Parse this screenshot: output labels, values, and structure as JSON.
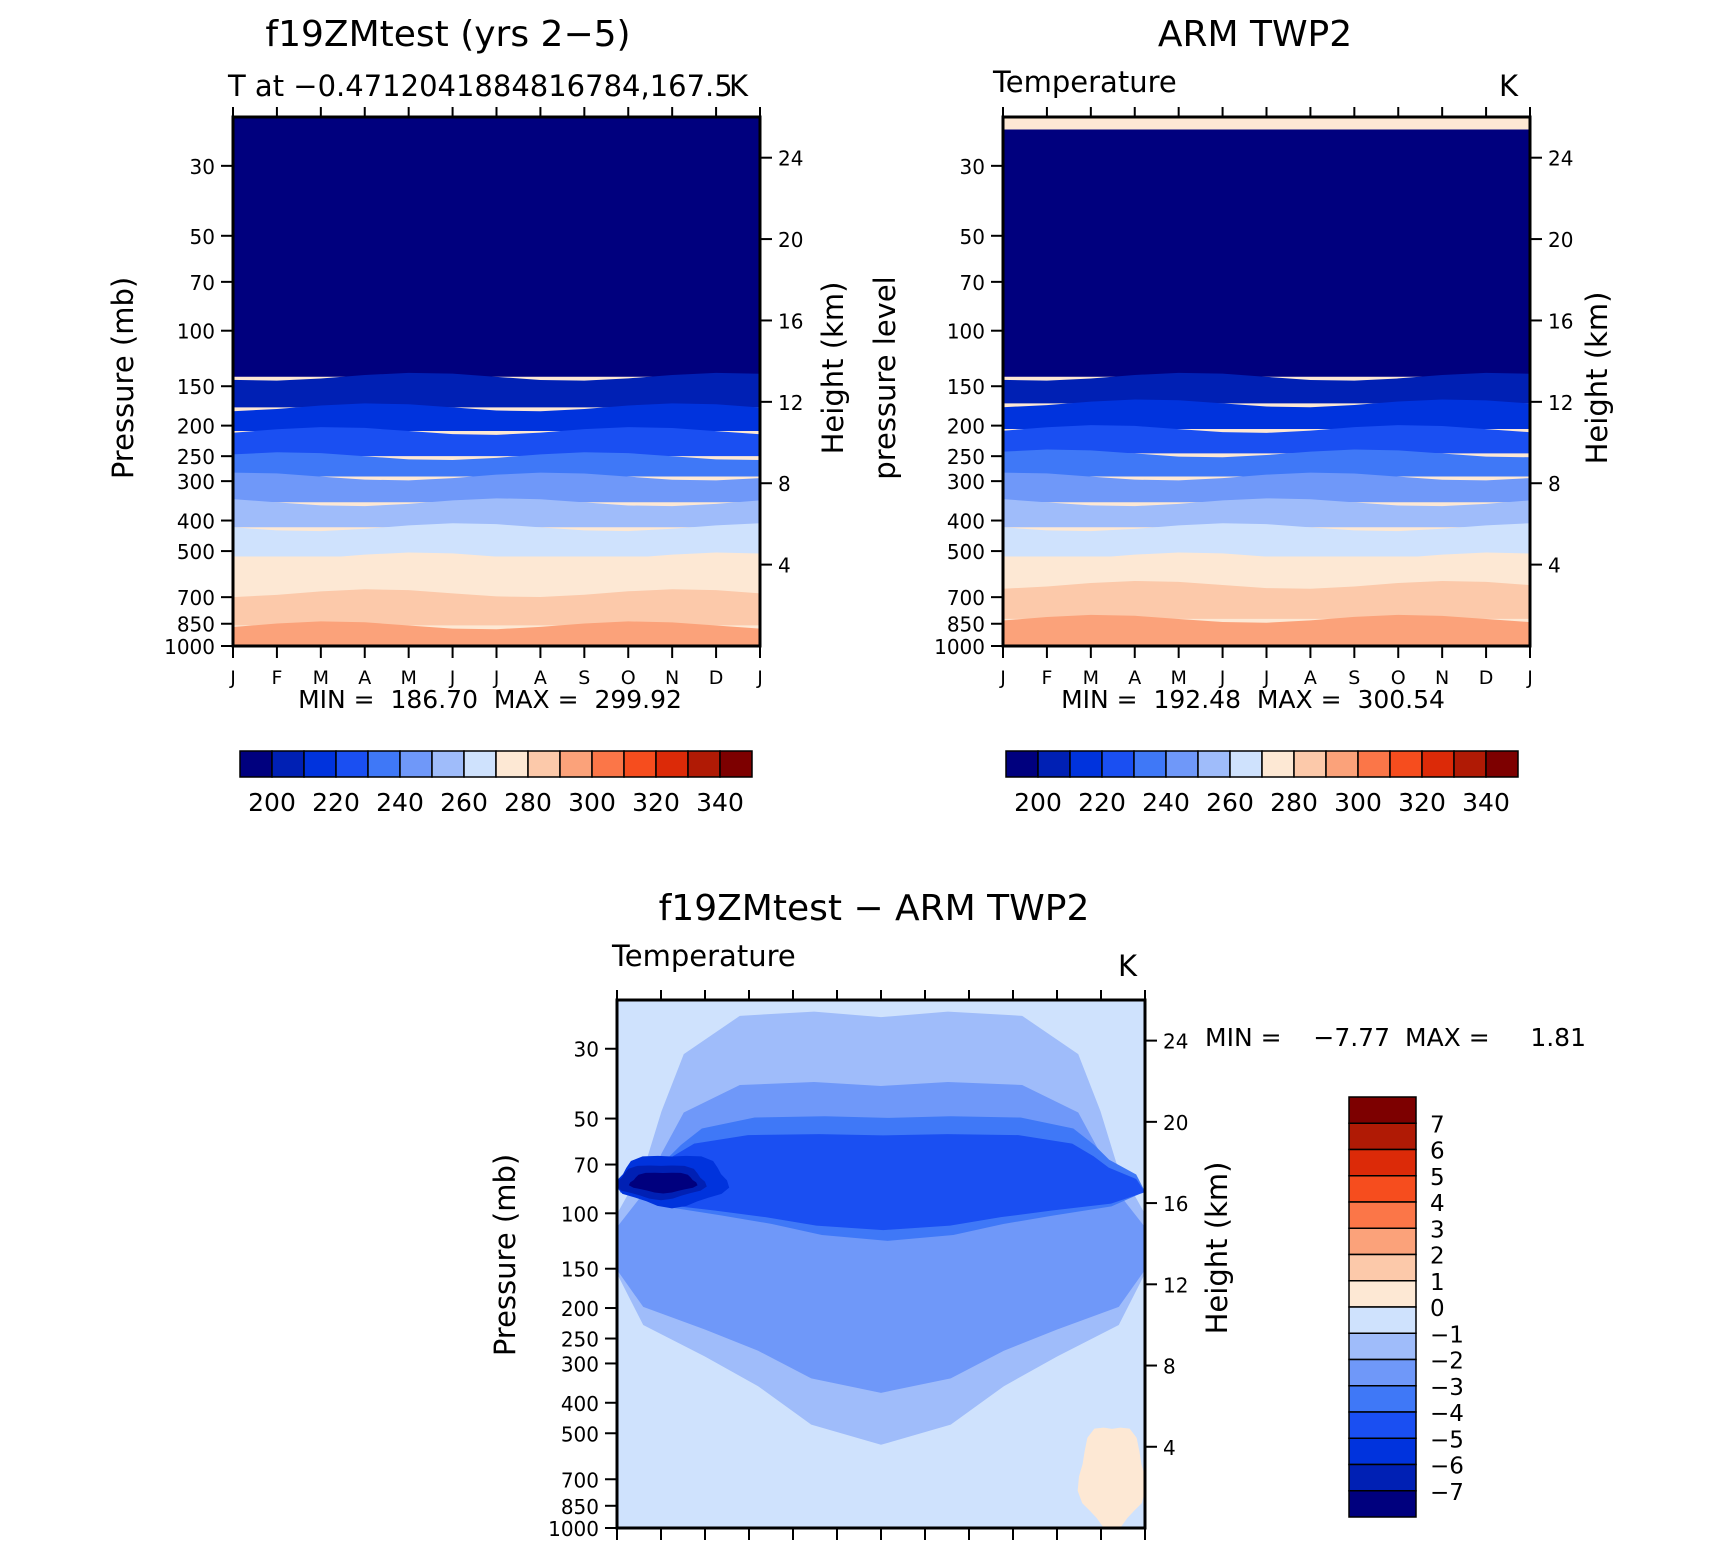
{
  "months": [
    "J",
    "F",
    "M",
    "A",
    "M",
    "J",
    "J",
    "A",
    "S",
    "O",
    "N",
    "D",
    "J"
  ],
  "pressure_ticks": [
    30,
    50,
    70,
    100,
    150,
    200,
    250,
    300,
    400,
    500,
    700,
    850,
    1000
  ],
  "height_ticks": [
    4,
    8,
    12,
    16,
    20,
    24
  ],
  "pressure_label": "Pressure (mb)",
  "pressure_label_alt": "pressure level",
  "height_label": "Height (km)",
  "abs_palette": [
    "#00007e",
    "#0020b4",
    "#0033dd",
    "#1a4ff2",
    "#3f78f7",
    "#6f98f9",
    "#9fbcfa",
    "#cfe2fd",
    "#fde8d4",
    "#fcc9aa",
    "#fba27a",
    "#fb7648",
    "#f64d1e",
    "#dc2a08",
    "#b01a05",
    "#7d0000"
  ],
  "abs_colorbar_labels": [
    "200",
    "220",
    "240",
    "260",
    "280",
    "300",
    "320",
    "340"
  ],
  "diff_palette": [
    "#00007e",
    "#0020b4",
    "#0033dd",
    "#1a4ff2",
    "#3f78f7",
    "#6f98f9",
    "#9fbcfa",
    "#cfe2fd",
    "#fde8d4",
    "#fcc9aa",
    "#fba27a",
    "#fb7648",
    "#f64d1e",
    "#dc2a08",
    "#b01a05",
    "#7d0000"
  ],
  "diff_colorbar_labels": [
    "7",
    "6",
    "5",
    "4",
    "3",
    "2",
    "1",
    "0",
    "−1",
    "−2",
    "−3",
    "−4",
    "−5",
    "−6",
    "−7"
  ],
  "chart_data": [
    {
      "type": "heatmap",
      "title": "f19ZMtest (yrs 2−5)",
      "left_label": "T at −0.4712041884816784,167.5",
      "right_label": "K",
      "ylabel": "Pressure (mb)",
      "y2label": "Height (km)",
      "x": [
        "J",
        "F",
        "M",
        "A",
        "M",
        "J",
        "J",
        "A",
        "S",
        "O",
        "N",
        "D",
        "J"
      ],
      "ylim": [
        1000,
        20
      ],
      "y2lim": [
        0,
        26
      ],
      "stats": "MIN =  186.70  MAX =  299.92",
      "min": 186.7,
      "max": 299.92,
      "bands": [
        {
          "level": "< 200",
          "top_pressure": 21,
          "bottom_pressure": 140,
          "color": "#00007e"
        },
        {
          "level": "200-210",
          "top_pressure": 140,
          "bottom_pressure": 175,
          "color": "#0020b4"
        },
        {
          "level": "210-220",
          "top_pressure": 175,
          "bottom_pressure": 208,
          "color": "#0033dd"
        },
        {
          "level": "220-230",
          "top_pressure": 208,
          "bottom_pressure": 250,
          "color": "#1a4ff2"
        },
        {
          "level": "230-240",
          "top_pressure": 250,
          "bottom_pressure": 290,
          "color": "#3f78f7"
        },
        {
          "level": "240-250",
          "top_pressure": 290,
          "bottom_pressure": 350,
          "color": "#6f98f9"
        },
        {
          "level": "250-260",
          "top_pressure": 350,
          "bottom_pressure": 420,
          "color": "#9fbcfa"
        },
        {
          "level": "260-270",
          "top_pressure": 420,
          "bottom_pressure": 520,
          "color": "#cfe2fd"
        },
        {
          "level": "270-280",
          "top_pressure": 520,
          "bottom_pressure": 680,
          "color": "#fde8d4"
        },
        {
          "level": "280-290",
          "top_pressure": 680,
          "bottom_pressure": 860,
          "color": "#fcc9aa"
        },
        {
          "level": "290-300",
          "top_pressure": 860,
          "bottom_pressure": 1000,
          "color": "#fba27a"
        }
      ]
    },
    {
      "type": "heatmap",
      "title": "ARM TWP2",
      "left_label": "Temperature",
      "right_label": "K",
      "ylabel": "pressure level",
      "y2label": "Height (km)",
      "x": [
        "J",
        "F",
        "M",
        "A",
        "M",
        "J",
        "J",
        "A",
        "S",
        "O",
        "N",
        "D",
        "J"
      ],
      "ylim": [
        1000,
        20
      ],
      "y2lim": [
        0,
        26
      ],
      "stats": "MIN =  192.48  MAX =  300.54",
      "min": 192.48,
      "max": 300.54,
      "bands": [
        {
          "level": "< 200",
          "top_pressure": 23,
          "bottom_pressure": 140,
          "color": "#00007e"
        },
        {
          "level": "200-210",
          "top_pressure": 140,
          "bottom_pressure": 170,
          "color": "#0020b4"
        },
        {
          "level": "210-220",
          "top_pressure": 170,
          "bottom_pressure": 205,
          "color": "#0033dd"
        },
        {
          "level": "220-230",
          "top_pressure": 205,
          "bottom_pressure": 245,
          "color": "#1a4ff2"
        },
        {
          "level": "230-240",
          "top_pressure": 245,
          "bottom_pressure": 290,
          "color": "#3f78f7"
        },
        {
          "level": "240-250",
          "top_pressure": 290,
          "bottom_pressure": 350,
          "color": "#6f98f9"
        },
        {
          "level": "250-260",
          "top_pressure": 350,
          "bottom_pressure": 420,
          "color": "#9fbcfa"
        },
        {
          "level": "260-270",
          "top_pressure": 420,
          "bottom_pressure": 520,
          "color": "#cfe2fd"
        },
        {
          "level": "270-280",
          "top_pressure": 520,
          "bottom_pressure": 640,
          "color": "#fde8d4"
        },
        {
          "level": "280-290",
          "top_pressure": 640,
          "bottom_pressure": 820,
          "color": "#fcc9aa"
        },
        {
          "level": "290-300",
          "top_pressure": 820,
          "bottom_pressure": 1000,
          "color": "#fba27a"
        }
      ]
    },
    {
      "type": "heatmap",
      "title": "f19ZMtest − ARM TWP2",
      "left_label": "Temperature",
      "right_label": "K",
      "ylabel": "Pressure (mb)",
      "y2label": "Height (km)",
      "x": [
        "J",
        "F",
        "M",
        "A",
        "M",
        "J",
        "J",
        "A",
        "S",
        "O",
        "N",
        "D",
        "J"
      ],
      "ylim": [
        1000,
        20
      ],
      "y2lim": [
        0,
        26
      ],
      "stats_min_label": "MIN =",
      "stats_min": "−7.77",
      "stats_max_label": "MAX =",
      "stats_max": "1.81",
      "min": -7.77,
      "max": 1.81,
      "blobs": [
        {
          "level": "-1 to 0",
          "color": "#cfe2fd",
          "month_span": [
            0,
            12
          ],
          "pressure_span": [
            21,
            1000
          ]
        },
        {
          "level": "-2 to -1",
          "color": "#9fbcfa",
          "month_span": [
            0,
            12
          ],
          "pressure_span": [
            21,
            480
          ]
        },
        {
          "level": "-3 to -2",
          "color": "#6f98f9",
          "month_span": [
            0,
            12
          ],
          "pressure_span": [
            36,
            340
          ]
        },
        {
          "level": "-4 to -3",
          "color": "#3f78f7",
          "month_span": [
            0.5,
            11.8
          ],
          "pressure_span": [
            48,
            118
          ]
        },
        {
          "level": "-5 to -4",
          "color": "#1a4ff2",
          "month_span": [
            0.3,
            11.8
          ],
          "pressure_span": [
            55,
            110
          ]
        },
        {
          "level": "-6 to -5",
          "color": "#0033dd",
          "month_span": [
            0,
            2.5
          ],
          "pressure_span": [
            65,
            95
          ]
        },
        {
          "level": "-7 to -6",
          "color": "#0020b4",
          "month_span": [
            0,
            2
          ],
          "pressure_span": [
            70,
            90
          ]
        },
        {
          "level": "< -7",
          "color": "#00007e",
          "month_span": [
            0.3,
            1.8
          ],
          "pressure_span": [
            74,
            86
          ]
        },
        {
          "level": "0 to 1",
          "color": "#fde8d4",
          "month_span": [
            10.5,
            12
          ],
          "pressure_span": [
            470,
            1000
          ]
        }
      ]
    }
  ]
}
